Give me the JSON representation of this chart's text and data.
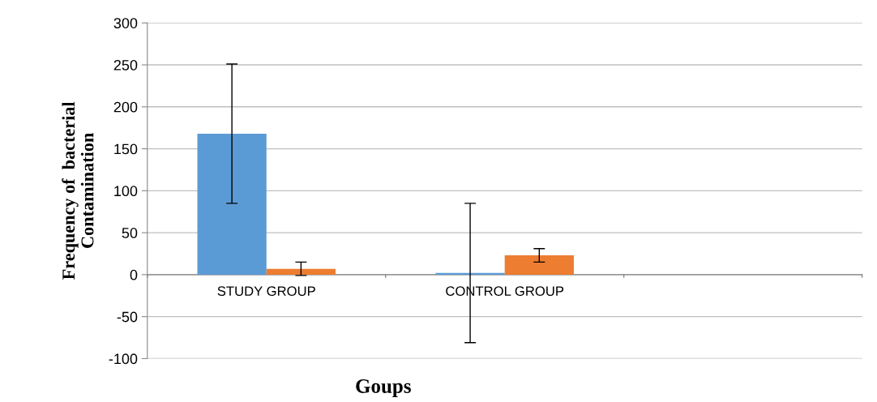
{
  "chart_data": {
    "type": "bar",
    "xlabel": "Goups",
    "ylabel": "Frequency of  bacterial\nContamination",
    "categories": [
      "STUDY GROUP",
      "CONTROL GROUP",
      null
    ],
    "series": [
      {
        "color": "#5b9bd5",
        "values": [
          168,
          2,
          null
        ],
        "errors": [
          83,
          83,
          null
        ]
      },
      {
        "color": "#ed7d31",
        "values": [
          7,
          23,
          null
        ],
        "errors": [
          8,
          8,
          null
        ]
      }
    ],
    "ylim": [
      -100,
      300
    ],
    "yticks": [
      -100,
      -50,
      0,
      50,
      100,
      150,
      200,
      250,
      300
    ],
    "grid": "y"
  }
}
